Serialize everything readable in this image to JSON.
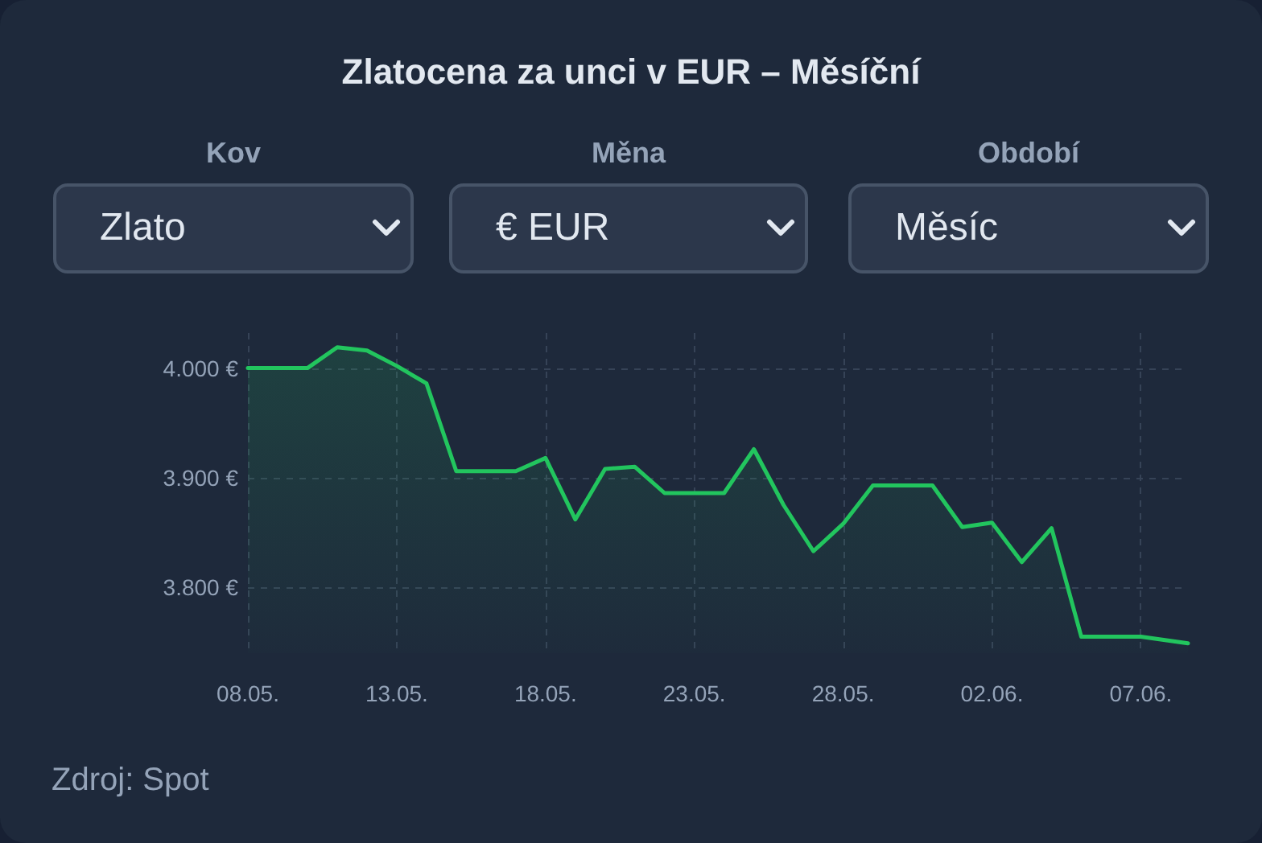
{
  "chart_data": {
    "type": "area",
    "title": "Zlatocena za unci v EUR – Měsíční",
    "x": [
      "--05-08",
      "--05-10",
      "--05-11",
      "--05-12",
      "--05-13",
      "--05-14",
      "--05-15",
      "--05-17",
      "--05-18",
      "--05-19",
      "--05-20",
      "--05-21",
      "--05-22",
      "--05-24",
      "--05-25",
      "--05-26",
      "--05-27",
      "--05-28",
      "--05-29",
      "--05-31",
      "--06-01",
      "--06-02",
      "--06-03",
      "--06-04",
      "--06-05",
      "--06-07",
      "--06-08T14:00"
    ],
    "series": [
      {
        "color": "#22c55e",
        "values": [
          4000,
          4000,
          4019,
          4016,
          4002,
          3986,
          3906,
          3906,
          3918,
          3862,
          3908,
          3910,
          3886,
          3886,
          3926,
          3875,
          3833,
          3858,
          3893,
          3893,
          3855,
          3859,
          3823,
          3854,
          3755,
          3755,
          3749
        ]
      }
    ],
    "xlim": [
      "--05-08",
      "--06-08T14:00"
    ],
    "xticks": [
      {
        "value": "--05-08",
        "label": "08.05."
      },
      {
        "value": "--05-13",
        "label": "13.05."
      },
      {
        "value": "--05-18",
        "label": "18.05."
      },
      {
        "value": "--05-23",
        "label": "23.05."
      },
      {
        "value": "--05-28",
        "label": "28.05."
      },
      {
        "value": "--06-02",
        "label": "02.06."
      },
      {
        "value": "--06-07",
        "label": "07.06."
      }
    ],
    "ylim": [
      3740,
      4032
    ],
    "yticks": [
      {
        "value": 3800,
        "label": "3.800 €"
      },
      {
        "value": 3900,
        "label": "3.900 €"
      },
      {
        "value": 4000,
        "label": "4.000 €"
      }
    ],
    "grid": true,
    "marker": "none",
    "annotations": [
      "Kov",
      "Zlato",
      "Měna",
      "€ EUR",
      "Období",
      "Měsíc",
      "Zdroj: Spot"
    ]
  }
}
